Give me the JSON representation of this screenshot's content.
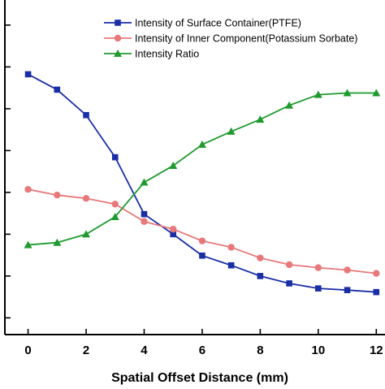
{
  "chart_data": {
    "type": "line",
    "xlabel": "Spatial Offset Distance (mm)",
    "ylabel": "",
    "x": [
      0,
      1,
      2,
      3,
      4,
      5,
      6,
      7,
      8,
      9,
      10,
      11,
      12
    ],
    "xlim": [
      -0.8,
      12.3
    ],
    "ylim": [
      0,
      1
    ],
    "xticks": [
      0,
      2,
      4,
      6,
      8,
      10,
      12
    ],
    "xtick_labels": [
      "0",
      "2",
      "4",
      "6",
      "8",
      "10",
      "12"
    ],
    "yticks": [
      0.05,
      0.175,
      0.3,
      0.425,
      0.55,
      0.675,
      0.8,
      0.925
    ],
    "grid": false,
    "legend_position": "top",
    "series": [
      {
        "name": "Intensity of Surface Container(PTFE)",
        "color": "#1a2ea6",
        "marker": "square",
        "values": [
          0.778,
          0.732,
          0.656,
          0.53,
          0.36,
          0.3,
          0.236,
          0.207,
          0.175,
          0.153,
          0.138,
          0.133,
          0.127
        ]
      },
      {
        "name": "Intensity of Inner Component(Potassium Sorbate)",
        "color": "#e8787a",
        "marker": "circle",
        "values": [
          0.434,
          0.417,
          0.407,
          0.39,
          0.338,
          0.315,
          0.28,
          0.261,
          0.229,
          0.209,
          0.2,
          0.193,
          0.183
        ]
      },
      {
        "name": "Intensity Ratio",
        "color": "#1f9a2f",
        "marker": "triangle",
        "values": [
          0.268,
          0.275,
          0.3,
          0.352,
          0.455,
          0.505,
          0.568,
          0.607,
          0.643,
          0.685,
          0.717,
          0.722,
          0.722
        ]
      }
    ]
  }
}
